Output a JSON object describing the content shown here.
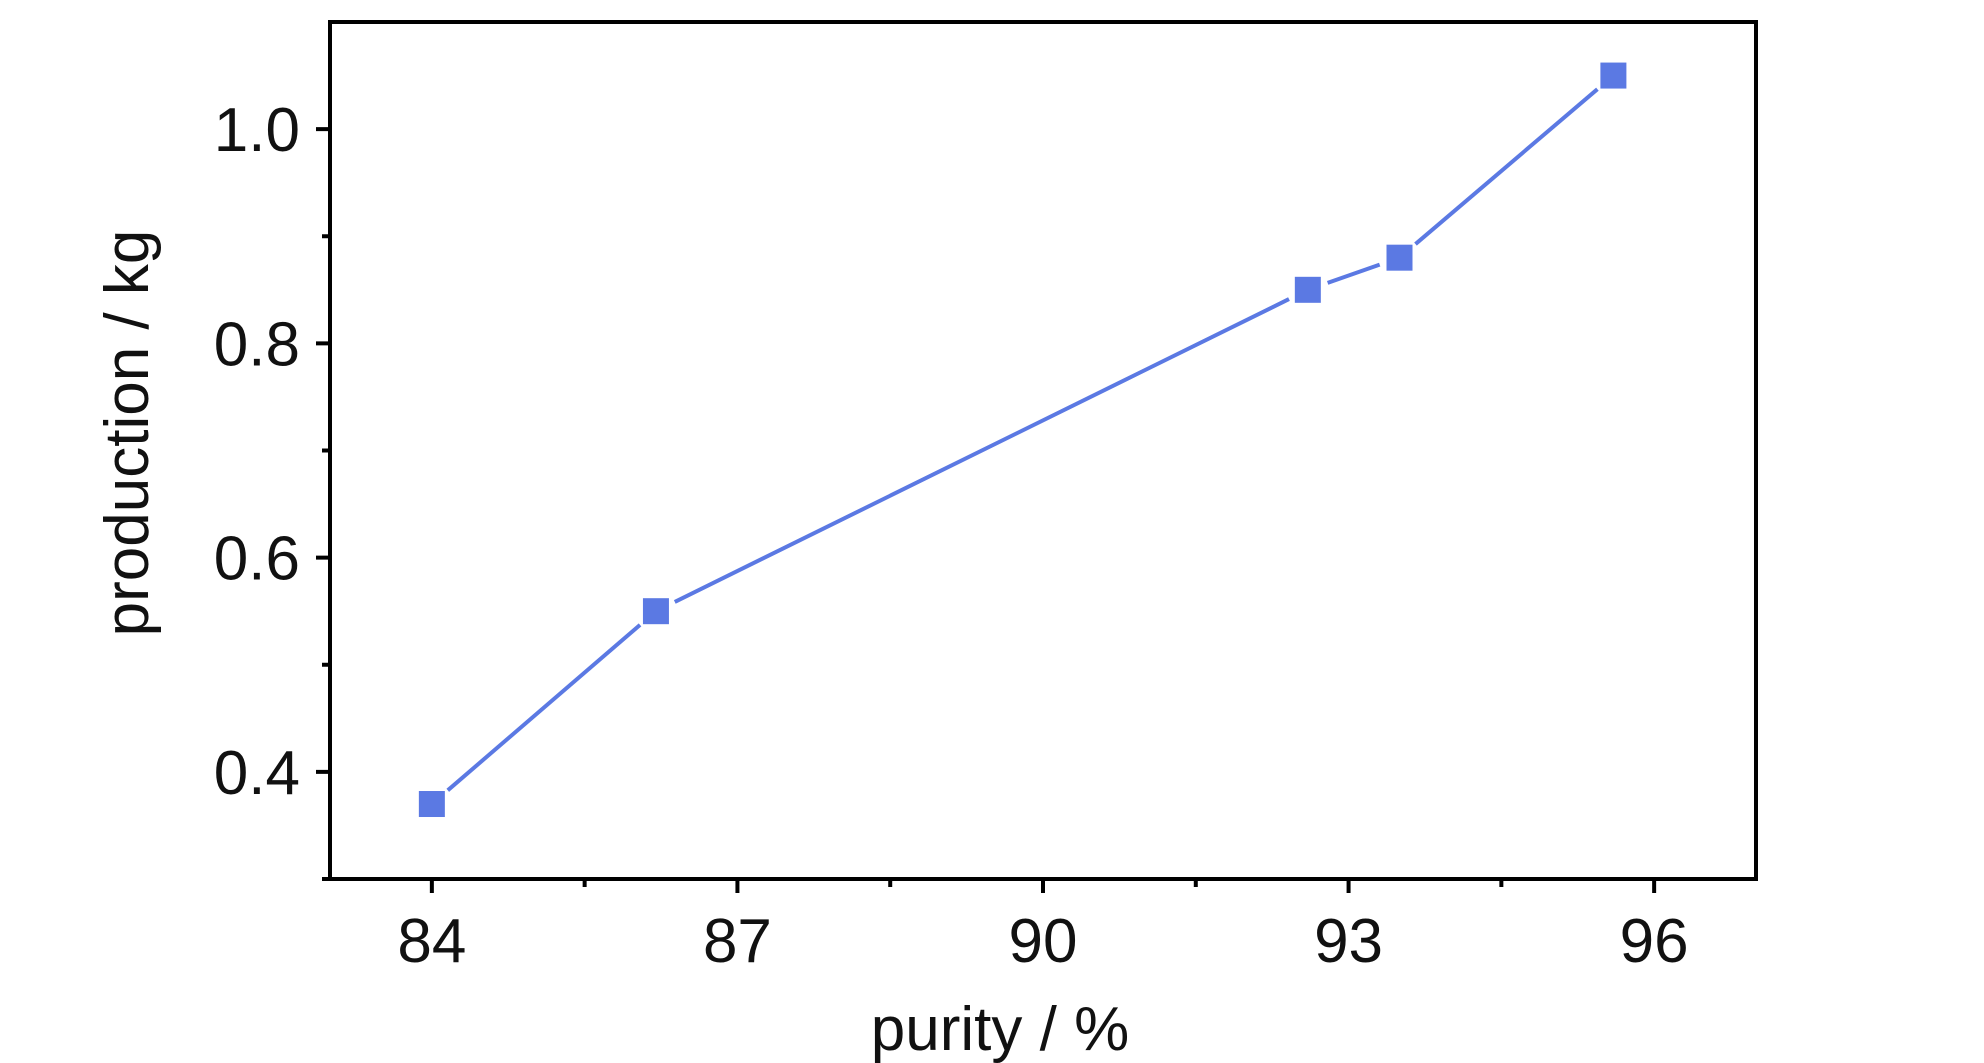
{
  "chart_data": {
    "type": "line",
    "title": "",
    "xlabel": "purity / %",
    "ylabel": "production / kg",
    "xlim": [
      83,
      97
    ],
    "ylim": [
      0.3,
      1.1
    ],
    "x_ticks": [
      84,
      87,
      90,
      93,
      96
    ],
    "x_tick_labels": [
      "84",
      "87",
      "90",
      "93",
      "96"
    ],
    "x_minor_ticks": [
      85.5,
      88.5,
      91.5,
      94.5
    ],
    "y_ticks": [
      0.4,
      0.6,
      0.8,
      1.0
    ],
    "y_tick_labels": [
      "0.4",
      "0.6",
      "0.8",
      "1.0"
    ],
    "y_minor_ticks": [
      0.3,
      0.5,
      0.7,
      0.9
    ],
    "grid": false,
    "legend": "none",
    "series": [
      {
        "color": "#5b79e3",
        "marker": "square",
        "x": [
          84.0,
          86.2,
          92.6,
          93.5,
          95.6
        ],
        "y": [
          0.37,
          0.55,
          0.85,
          0.88,
          1.05
        ]
      }
    ]
  }
}
